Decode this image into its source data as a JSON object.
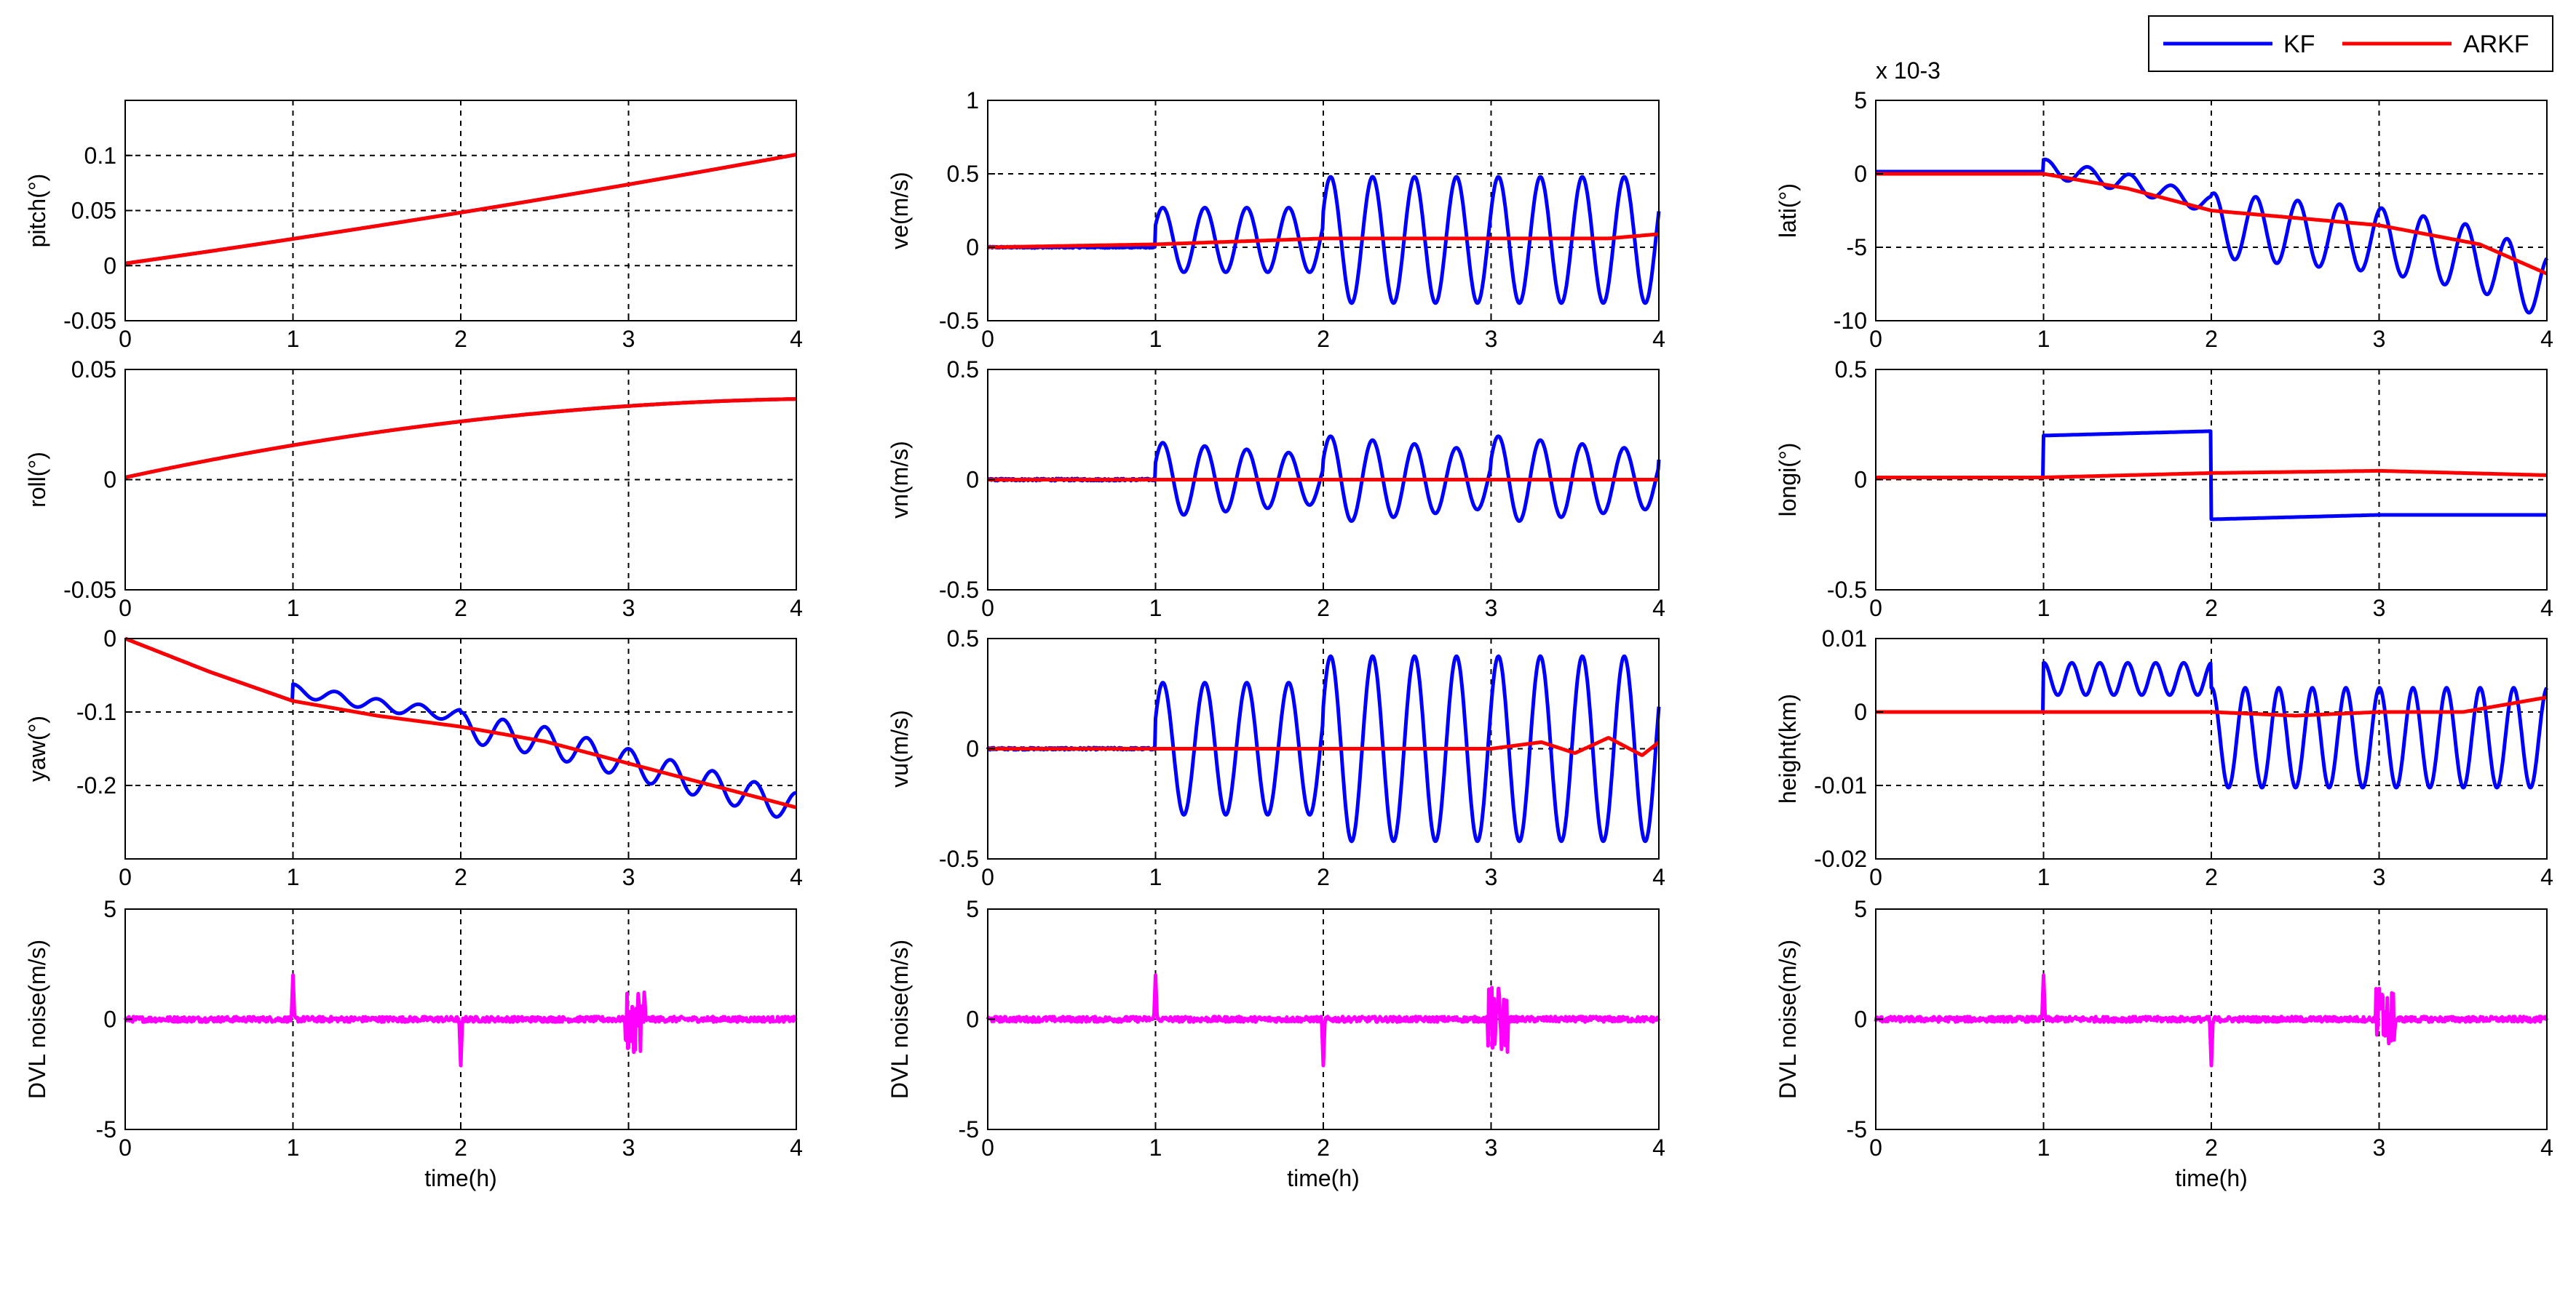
{
  "legend": {
    "location": "top-right",
    "entries": [
      {
        "name": "KF",
        "color": "#0000ff"
      },
      {
        "name": "ARKF",
        "color": "#ff0000"
      }
    ]
  },
  "colors": {
    "kf": "#0000ff",
    "arkf": "#ff0000",
    "noise": "#ff00ff",
    "grid": "#000000"
  },
  "chart_data": [
    {
      "id": "pitch",
      "type": "line",
      "ylabel": "pitch(°)",
      "xlabel": "",
      "xlim": [
        0,
        4
      ],
      "ylim": [
        -0.05,
        0.15
      ],
      "yticks": [
        -0.05,
        0,
        0.05,
        0.1
      ],
      "yticklabels": [
        "-0.05",
        "0",
        "0.05",
        "0.1"
      ],
      "xticks": [
        0,
        1,
        2,
        3,
        4
      ],
      "xticklabels": [
        "0",
        "1",
        "2",
        "3",
        "4"
      ],
      "grid": true,
      "exponent": "",
      "series": [
        {
          "name": "KF",
          "color": "#0000ff",
          "model": {
            "kind": "pitch"
          }
        },
        {
          "name": "ARKF",
          "color": "#ff0000",
          "model": {
            "kind": "pitch"
          }
        }
      ]
    },
    {
      "id": "ve",
      "type": "line",
      "ylabel": "ve(m/s)",
      "xlabel": "",
      "xlim": [
        0,
        4
      ],
      "ylim": [
        -0.5,
        1
      ],
      "yticks": [
        -0.5,
        0,
        0.5,
        1
      ],
      "yticklabels": [
        "-0.5",
        "0",
        "0.5",
        "1"
      ],
      "xticks": [
        0,
        1,
        2,
        3,
        4
      ],
      "xticklabels": [
        "0",
        "1",
        "2",
        "3",
        "4"
      ],
      "grid": true,
      "exponent": "",
      "series": [
        {
          "name": "KF",
          "color": "#0000ff",
          "model": {
            "kind": "osc",
            "amp1": 0.22,
            "amp2": 0.43,
            "off1": 0.05,
            "off2": 0.05
          }
        },
        {
          "name": "ARKF",
          "color": "#ff0000",
          "model": {
            "kind": "smooth",
            "pts": [
              [
                0,
                0
              ],
              [
                1,
                0.02
              ],
              [
                2,
                0.06
              ],
              [
                3,
                0.06
              ],
              [
                3.7,
                0.06
              ],
              [
                4,
                0.09
              ]
            ]
          }
        }
      ]
    },
    {
      "id": "lati",
      "type": "line",
      "ylabel": "lati(°)",
      "xlabel": "",
      "xlim": [
        0,
        4
      ],
      "ylim": [
        -10,
        5
      ],
      "yticks": [
        -10,
        -5,
        0,
        5
      ],
      "yticklabels": [
        "-10",
        "-5",
        "0",
        "5"
      ],
      "xticks": [
        0,
        1,
        2,
        3,
        4
      ],
      "xticklabels": [
        "0",
        "1",
        "2",
        "3",
        "4"
      ],
      "grid": true,
      "exponent": "x 10-3",
      "series": [
        {
          "name": "KF",
          "color": "#0000ff",
          "model": {
            "kind": "lati"
          }
        },
        {
          "name": "ARKF",
          "color": "#ff0000",
          "model": {
            "kind": "smooth",
            "pts": [
              [
                0,
                0
              ],
              [
                1,
                0
              ],
              [
                1.5,
                -1
              ],
              [
                2,
                -2.5
              ],
              [
                3,
                -3.5
              ],
              [
                3.6,
                -4.8
              ],
              [
                4,
                -6.8
              ]
            ]
          }
        }
      ]
    },
    {
      "id": "roll",
      "type": "line",
      "ylabel": "roll(°)",
      "xlabel": "",
      "xlim": [
        0,
        4
      ],
      "ylim": [
        -0.05,
        0.05
      ],
      "yticks": [
        -0.05,
        0,
        0.05
      ],
      "yticklabels": [
        "-0.05",
        "0",
        "0.05"
      ],
      "xticks": [
        0,
        1,
        2,
        3,
        4
      ],
      "xticklabels": [
        "0",
        "1",
        "2",
        "3",
        "4"
      ],
      "grid": true,
      "exponent": "",
      "series": [
        {
          "name": "KF",
          "color": "#0000ff",
          "model": {
            "kind": "roll"
          }
        },
        {
          "name": "ARKF",
          "color": "#ff0000",
          "model": {
            "kind": "roll"
          }
        }
      ]
    },
    {
      "id": "vn",
      "type": "line",
      "ylabel": "vn(m/s)",
      "xlabel": "",
      "xlim": [
        0,
        4
      ],
      "ylim": [
        -0.5,
        0.5
      ],
      "yticks": [
        -0.5,
        0,
        0.5
      ],
      "yticklabels": [
        "-0.5",
        "0",
        "0.5"
      ],
      "xticks": [
        0,
        1,
        2,
        3,
        4
      ],
      "xticklabels": [
        "0",
        "1",
        "2",
        "3",
        "4"
      ],
      "grid": true,
      "exponent": "",
      "series": [
        {
          "name": "KF",
          "color": "#0000ff",
          "model": {
            "kind": "osc",
            "amp1": 0.17,
            "amp2": 0.2,
            "off1": 0,
            "off2": 0,
            "decay": true
          }
        },
        {
          "name": "ARKF",
          "color": "#ff0000",
          "model": {
            "kind": "smooth",
            "pts": [
              [
                0,
                0
              ],
              [
                4,
                0
              ]
            ]
          }
        }
      ]
    },
    {
      "id": "longi",
      "type": "line",
      "ylabel": "longi(°)",
      "xlabel": "",
      "xlim": [
        0,
        4
      ],
      "ylim": [
        -0.5,
        0.5
      ],
      "yticks": [
        -0.5,
        0,
        0.5
      ],
      "yticklabels": [
        "-0.5",
        "0",
        "0.5"
      ],
      "xticks": [
        0,
        1,
        2,
        3,
        4
      ],
      "xticklabels": [
        "0",
        "1",
        "2",
        "3",
        "4"
      ],
      "grid": true,
      "exponent": "",
      "series": [
        {
          "name": "KF",
          "color": "#0000ff",
          "model": {
            "kind": "smooth",
            "pts": [
              [
                0,
                0.01
              ],
              [
                0.999,
                0.01
              ],
              [
                1,
                0.2
              ],
              [
                1.5,
                0.21
              ],
              [
                1.999,
                0.22
              ],
              [
                2,
                -0.18
              ],
              [
                2.5,
                -0.17
              ],
              [
                3,
                -0.16
              ],
              [
                4,
                -0.16
              ]
            ]
          }
        },
        {
          "name": "ARKF",
          "color": "#ff0000",
          "model": {
            "kind": "smooth",
            "pts": [
              [
                0,
                0.01
              ],
              [
                1,
                0.01
              ],
              [
                1.5,
                0.02
              ],
              [
                2,
                0.03
              ],
              [
                3,
                0.04
              ],
              [
                4,
                0.02
              ]
            ]
          }
        }
      ]
    },
    {
      "id": "yaw",
      "type": "line",
      "ylabel": "yaw(°)",
      "xlabel": "",
      "xlim": [
        0,
        4
      ],
      "ylim": [
        -0.3,
        0
      ],
      "yticks": [
        -0.2,
        -0.1,
        0
      ],
      "yticklabels": [
        "-0.2",
        "-0.1",
        "0"
      ],
      "xticks": [
        0,
        1,
        2,
        3,
        4
      ],
      "xticklabels": [
        "0",
        "1",
        "2",
        "3",
        "4"
      ],
      "grid": true,
      "exponent": "",
      "series": [
        {
          "name": "KF",
          "color": "#0000ff",
          "model": {
            "kind": "yawkf"
          }
        },
        {
          "name": "ARKF",
          "color": "#ff0000",
          "model": {
            "kind": "smooth",
            "pts": [
              [
                0,
                0
              ],
              [
                0.5,
                -0.045
              ],
              [
                1,
                -0.085
              ],
              [
                1.5,
                -0.105
              ],
              [
                2,
                -0.12
              ],
              [
                2.5,
                -0.14
              ],
              [
                3,
                -0.17
              ],
              [
                3.5,
                -0.2
              ],
              [
                4,
                -0.23
              ]
            ]
          }
        }
      ]
    },
    {
      "id": "vu",
      "type": "line",
      "ylabel": "vu(m/s)",
      "xlabel": "",
      "xlim": [
        0,
        4
      ],
      "ylim": [
        -0.5,
        0.5
      ],
      "yticks": [
        -0.5,
        0,
        0.5
      ],
      "yticklabels": [
        "-0.5",
        "0",
        "0.5"
      ],
      "xticks": [
        0,
        1,
        2,
        3,
        4
      ],
      "xticklabels": [
        "0",
        "1",
        "2",
        "3",
        "4"
      ],
      "grid": true,
      "exponent": "",
      "series": [
        {
          "name": "KF",
          "color": "#0000ff",
          "model": {
            "kind": "osc",
            "amp1": 0.3,
            "amp2": 0.42,
            "off1": 0,
            "off2": 0
          }
        },
        {
          "name": "ARKF",
          "color": "#ff0000",
          "model": {
            "kind": "smooth",
            "pts": [
              [
                0,
                0
              ],
              [
                3,
                0
              ],
              [
                3.3,
                0.03
              ],
              [
                3.5,
                -0.02
              ],
              [
                3.7,
                0.05
              ],
              [
                3.9,
                -0.03
              ],
              [
                4,
                0.03
              ]
            ]
          }
        }
      ]
    },
    {
      "id": "height",
      "type": "line",
      "ylabel": "height(km)",
      "xlabel": "",
      "xlim": [
        0,
        4
      ],
      "ylim": [
        -0.02,
        0.01
      ],
      "yticks": [
        -0.02,
        -0.01,
        0,
        0.01
      ],
      "yticklabels": [
        "-0.02",
        "-0.01",
        "0",
        "0.01"
      ],
      "xticks": [
        0,
        1,
        2,
        3,
        4
      ],
      "xticklabels": [
        "0",
        "1",
        "2",
        "3",
        "4"
      ],
      "grid": true,
      "exponent": "",
      "series": [
        {
          "name": "KF",
          "color": "#0000ff",
          "model": {
            "kind": "heightkf"
          }
        },
        {
          "name": "ARKF",
          "color": "#ff0000",
          "model": {
            "kind": "smooth",
            "pts": [
              [
                0,
                0
              ],
              [
                1,
                0
              ],
              [
                2,
                0
              ],
              [
                2.5,
                -0.0005
              ],
              [
                3,
                0
              ],
              [
                3.5,
                0
              ],
              [
                4,
                0.002
              ]
            ]
          }
        }
      ]
    },
    {
      "id": "noise1",
      "type": "line",
      "ylabel": "DVL  noise(m/s)",
      "xlabel": "time(h)",
      "xlim": [
        0,
        4
      ],
      "ylim": [
        -5,
        5
      ],
      "yticks": [
        -5,
        0,
        5
      ],
      "yticklabels": [
        "-5",
        "0",
        "5"
      ],
      "xticks": [
        0,
        1,
        2,
        3,
        4
      ],
      "xticklabels": [
        "0",
        "1",
        "2",
        "3",
        "4"
      ],
      "grid": true,
      "exponent": "",
      "series": [
        {
          "name": "DVL noise",
          "color": "#ff00ff",
          "model": {
            "kind": "noise"
          }
        }
      ]
    },
    {
      "id": "noise2",
      "type": "line",
      "ylabel": "DVL  noise(m/s)",
      "xlabel": "time(h)",
      "xlim": [
        0,
        4
      ],
      "ylim": [
        -5,
        5
      ],
      "yticks": [
        -5,
        0,
        5
      ],
      "yticklabels": [
        "-5",
        "0",
        "5"
      ],
      "xticks": [
        0,
        1,
        2,
        3,
        4
      ],
      "xticklabels": [
        "0",
        "1",
        "2",
        "3",
        "4"
      ],
      "grid": true,
      "exponent": "",
      "series": [
        {
          "name": "DVL noise",
          "color": "#ff00ff",
          "model": {
            "kind": "noise"
          }
        }
      ]
    },
    {
      "id": "noise3",
      "type": "line",
      "ylabel": "DVL  noise(m/s)",
      "xlabel": "time(h)",
      "xlim": [
        0,
        4
      ],
      "ylim": [
        -5,
        5
      ],
      "yticks": [
        -5,
        0,
        5
      ],
      "yticklabels": [
        "-5",
        "0",
        "5"
      ],
      "xticks": [
        0,
        1,
        2,
        3,
        4
      ],
      "xticklabels": [
        "0",
        "1",
        "2",
        "3",
        "4"
      ],
      "grid": true,
      "exponent": "",
      "series": [
        {
          "name": "DVL noise",
          "color": "#ff00ff",
          "model": {
            "kind": "noise"
          }
        }
      ]
    }
  ]
}
